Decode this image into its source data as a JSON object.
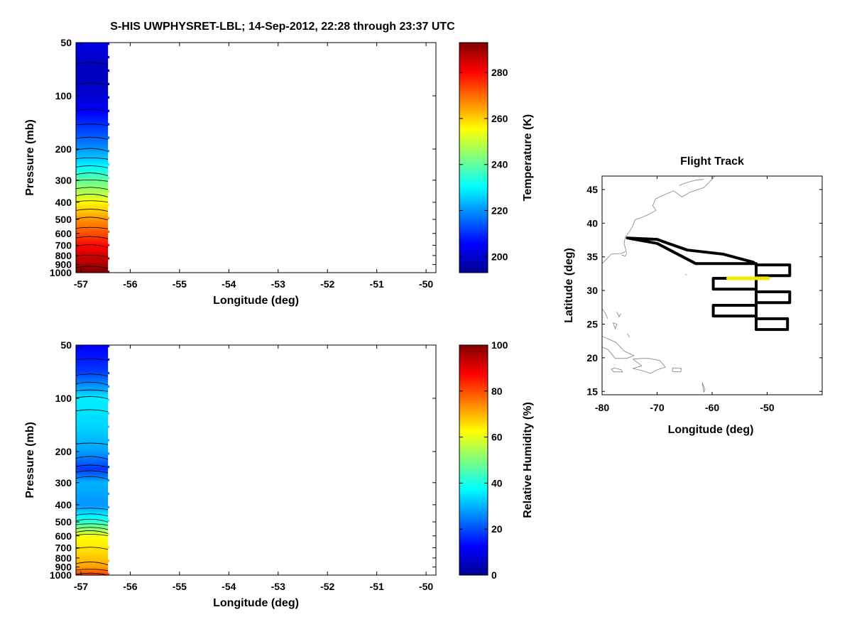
{
  "figure": {
    "title": "S-HIS UWPHYSRET-LBL;   14-Sep-2012, 22:28 through 23:37 UTC"
  },
  "chart_data": [
    {
      "type": "heatmap",
      "xlabel": "Longitude (deg)",
      "ylabel": "Pressure (mb)",
      "xlim": [
        -57.1,
        -49.8
      ],
      "ylim": [
        1000,
        50
      ],
      "y_scale": "log",
      "xticks": [
        -57,
        -56,
        -55,
        -54,
        -53,
        -52,
        -51,
        -50
      ],
      "xtick_labels": [
        "-57",
        "-56",
        "-55",
        "-54",
        "-53",
        "-52",
        "-51",
        "-50"
      ],
      "yticks": [
        50,
        100,
        200,
        300,
        400,
        500,
        600,
        700,
        800,
        900,
        1000
      ],
      "ytick_labels": [
        "50",
        "100",
        "200",
        "300",
        "400",
        "500",
        "600",
        "700",
        "800",
        "900",
        "1000"
      ],
      "data_extent_x": [
        -57.1,
        -56.45
      ],
      "colormap": "jet",
      "grid": false,
      "contours": true,
      "colorbar": {
        "label": "Temperature (K)",
        "range": [
          193,
          293
        ],
        "ticks": [
          200,
          220,
          240,
          260,
          280
        ],
        "tick_labels": [
          "200",
          "220",
          "240",
          "260",
          "280"
        ]
      },
      "profile": {
        "pressure": [
          50,
          70,
          100,
          150,
          200,
          250,
          300,
          400,
          500,
          600,
          700,
          800,
          900,
          1000
        ],
        "value": [
          203,
          199,
          201,
          211,
          220,
          230,
          240,
          256,
          266,
          273,
          280,
          285,
          289,
          293
        ]
      }
    },
    {
      "type": "heatmap",
      "xlabel": "Longitude (deg)",
      "ylabel": "Pressure (mb)",
      "xlim": [
        -57.1,
        -49.8
      ],
      "ylim": [
        1000,
        50
      ],
      "y_scale": "log",
      "xticks": [
        -57,
        -56,
        -55,
        -54,
        -53,
        -52,
        -51,
        -50
      ],
      "xtick_labels": [
        "-57",
        "-56",
        "-55",
        "-54",
        "-53",
        "-52",
        "-51",
        "-50"
      ],
      "yticks": [
        50,
        100,
        200,
        300,
        400,
        500,
        600,
        700,
        800,
        900,
        1000
      ],
      "ytick_labels": [
        "50",
        "100",
        "200",
        "300",
        "400",
        "500",
        "600",
        "700",
        "800",
        "900",
        "1000"
      ],
      "data_extent_x": [
        -57.1,
        -56.45
      ],
      "colormap": "jet",
      "grid": false,
      "contours": true,
      "colorbar": {
        "label": "Relative Humidity (%)",
        "range": [
          0,
          100
        ],
        "ticks": [
          0,
          20,
          40,
          60,
          80,
          100
        ],
        "tick_labels": [
          "0",
          "20",
          "40",
          "60",
          "80",
          "100"
        ]
      },
      "profile": {
        "pressure": [
          50,
          70,
          100,
          150,
          200,
          250,
          300,
          400,
          500,
          600,
          700,
          800,
          900,
          1000
        ],
        "value": [
          12,
          18,
          36,
          33,
          28,
          18,
          30,
          27,
          42,
          62,
          65,
          68,
          72,
          82
        ]
      }
    },
    {
      "type": "line",
      "title": "Flight Track",
      "xlabel": "Longitude (deg)",
      "ylabel": "Latitude (deg)",
      "xlim": [
        -80,
        -40
      ],
      "ylim": [
        14.5,
        47
      ],
      "xticks": [
        -80,
        -70,
        -60,
        -50
      ],
      "xtick_labels": [
        "-80",
        "-70",
        "-60",
        "-50"
      ],
      "yticks": [
        15,
        20,
        25,
        30,
        35,
        40,
        45
      ],
      "ytick_labels": [
        "15",
        "20",
        "25",
        "30",
        "35",
        "40",
        "45"
      ],
      "grid": false,
      "series": [
        {
          "role": "flight-track",
          "color": "#000000",
          "lon": [
            -75.4,
            -70.0,
            -68.0,
            -64.5,
            -58.0,
            -52.5,
            -52.0,
            -45.9,
            -45.9,
            -52.0,
            -52.0,
            -59.8,
            -59.8,
            -52.0,
            -52.0,
            -45.9,
            -45.9,
            -52.0,
            -52.0,
            -59.8,
            -59.8,
            -52.0,
            -52.0,
            -46.3,
            -46.3,
            -52.0,
            -52.0,
            -63.0,
            -70.0,
            -75.4
          ],
          "lat": [
            37.8,
            37.6,
            37.0,
            36.0,
            35.4,
            34.2,
            33.8,
            33.8,
            32.2,
            32.2,
            31.8,
            31.8,
            30.2,
            30.2,
            29.8,
            29.8,
            28.2,
            28.2,
            27.8,
            27.8,
            26.2,
            26.2,
            25.8,
            25.8,
            24.2,
            24.2,
            34.0,
            34.0,
            37.0,
            37.8
          ]
        },
        {
          "role": "current-segment",
          "color": "#f5e800",
          "lon": [
            -57.1,
            -49.8
          ],
          "lat": [
            31.8,
            31.8
          ]
        }
      ]
    }
  ]
}
